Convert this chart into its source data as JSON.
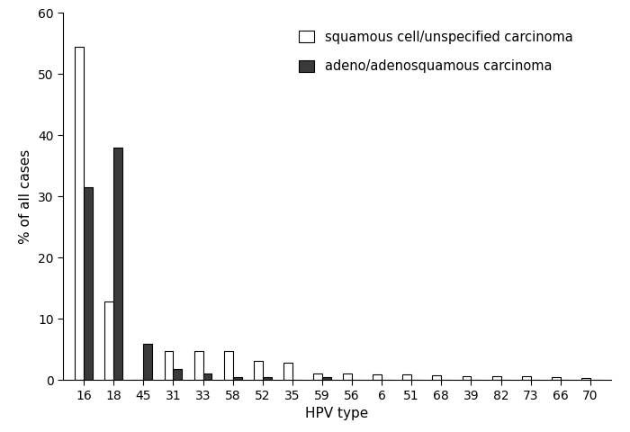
{
  "hpv_types": [
    "16",
    "18",
    "45",
    "31",
    "33",
    "58",
    "52",
    "35",
    "59",
    "56",
    "6",
    "51",
    "68",
    "39",
    "82",
    "73",
    "66",
    "70"
  ],
  "squamous": [
    54.5,
    12.8,
    0,
    4.7,
    4.7,
    4.7,
    3.2,
    2.9,
    1.1,
    1.1,
    0.9,
    1.0,
    0.8,
    0.6,
    0.6,
    0.7,
    0.5,
    0.3
  ],
  "adeno": [
    31.5,
    38.0,
    6.0,
    1.8,
    1.1,
    0.5,
    0.5,
    0,
    0.5,
    0,
    0,
    0,
    0,
    0,
    0,
    0,
    0,
    0
  ],
  "ylabel": "% of all cases",
  "xlabel": "HPV type",
  "ylim": [
    0,
    60
  ],
  "yticks": [
    0,
    10,
    20,
    30,
    40,
    50,
    60
  ],
  "legend_squamous": "squamous cell/unspecified carcinoma",
  "legend_adeno": "adeno/adenosquamous carcinoma",
  "bar_width": 0.3,
  "squamous_color": "#ffffff",
  "adeno_color": "#3a3a3a",
  "edge_color": "#000000",
  "background_color": "#ffffff",
  "figsize": [
    7.0,
    4.8
  ],
  "dpi": 100
}
